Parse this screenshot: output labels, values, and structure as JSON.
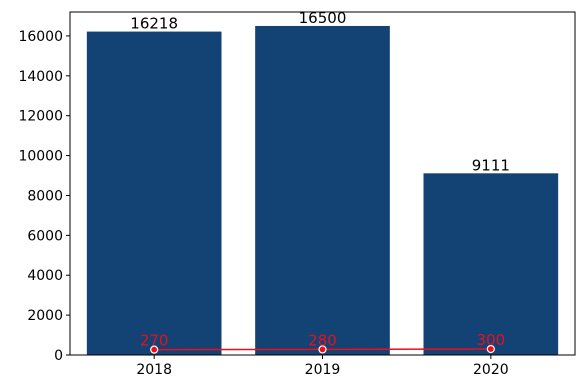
{
  "chart_data": [
    {
      "type": "bar",
      "categories": [
        "2018",
        "2019",
        "2020"
      ],
      "values": [
        16218,
        16500,
        9111
      ],
      "data_labels": [
        "16218",
        "16500",
        "9111"
      ],
      "ylim": [
        0,
        17200
      ],
      "yticks": [
        0,
        2000,
        4000,
        6000,
        8000,
        10000,
        12000,
        14000,
        16000
      ],
      "ytick_labels": [
        "0",
        "2000",
        "4000",
        "6000",
        "8000",
        "10000",
        "12000",
        "14000",
        "16000"
      ],
      "xtick_labels": [
        "2018",
        "2019",
        "2020"
      ],
      "grid": false,
      "color": "#134275"
    },
    {
      "type": "line",
      "categories": [
        "2018",
        "2019",
        "2020"
      ],
      "values": [
        270,
        280,
        300
      ],
      "data_labels": [
        "270",
        "280",
        "300"
      ],
      "color": "#e8101c"
    }
  ]
}
